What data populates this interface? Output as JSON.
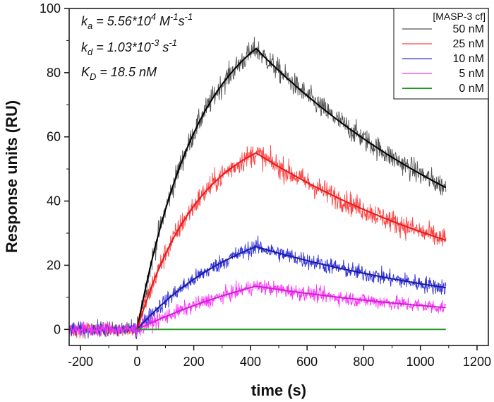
{
  "chart_data": {
    "type": "line",
    "title": "",
    "xlabel": "time (s)",
    "ylabel": "Response units (RU)",
    "xlim": [
      -240,
      1240
    ],
    "ylim": [
      -5,
      100
    ],
    "x_ticks": [
      -200,
      0,
      200,
      400,
      600,
      800,
      1000,
      1200
    ],
    "y_ticks": [
      0,
      20,
      40,
      60,
      80,
      100
    ],
    "grid": false,
    "legend_position": "top-right",
    "legend_title": "[MASP-3 cf]",
    "annotations": {
      "ka": {
        "sym": "k",
        "sub": "a",
        "text": " = 5.56*10",
        "sup": "4",
        "unit": " M",
        "unit_sup": "-1",
        "unit2": "s",
        "unit2_sup": "-1"
      },
      "kd": {
        "sym": "k",
        "sub": "d",
        "text": " = 1.03*10",
        "sup": "-3",
        "unit": " s",
        "unit_sup": "-1"
      },
      "KD": {
        "sym": "K",
        "sub": "D",
        "text": " = 18.5 nM"
      }
    },
    "association_end": 420,
    "time_range": [
      -240,
      1090
    ],
    "series": [
      {
        "name": "50 nM",
        "color": "#555555",
        "fit_color": "#000000",
        "peak": 87.5,
        "end": 44.2
      },
      {
        "name": "25 nM",
        "color": "#ff4444",
        "fit_color": "#e31a1c",
        "peak": 55.0,
        "end": 27.8
      },
      {
        "name": "10 nM",
        "color": "#3333dd",
        "fit_color": "#1a1a9e",
        "peak": 25.8,
        "end": 13.0
      },
      {
        "name": "5 nM",
        "color": "#ff33ff",
        "fit_color": "#cc22cc",
        "peak": 13.5,
        "end": 6.8
      },
      {
        "name": "0 nM",
        "color": "#229922",
        "fit_color": "#229922",
        "peak": 0,
        "end": 0
      }
    ]
  }
}
